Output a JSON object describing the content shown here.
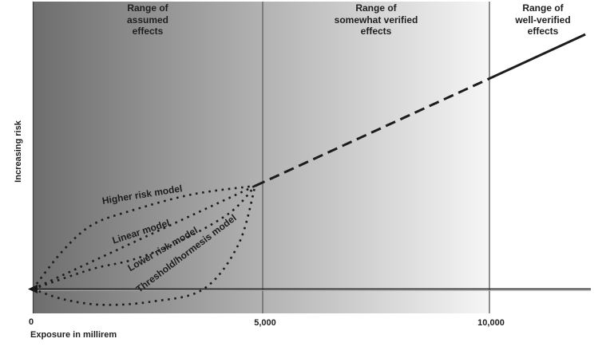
{
  "chart_data": {
    "type": "line",
    "xlabel": "Exposure in millirem",
    "ylabel": "Increasing risk",
    "x_tick_labels": [
      "0",
      "5,000",
      "10,000"
    ],
    "x_tick_values": [
      0,
      5000,
      10000
    ],
    "x_range_millirem": [
      0,
      12200
    ],
    "y_axis": "unitless relative risk (baseline 0 at x-axis line)",
    "regions": [
      {
        "id": "assumed",
        "lines": [
          "Range of",
          "assumed",
          "effects"
        ],
        "x_start": 0,
        "x_end": 5000
      },
      {
        "id": "somewhat-verified",
        "lines": [
          "Range of",
          "somewhat verified",
          "effects"
        ],
        "x_start": 5000,
        "x_end": 10000
      },
      {
        "id": "well-verified",
        "lines": [
          "Range of",
          "well-verified",
          "effects"
        ],
        "x_start": 10000,
        "x_end": 12200
      }
    ],
    "series": [
      {
        "id": "higher-risk-model",
        "name": "Higher risk model",
        "style": "dotted",
        "points": [
          [
            0,
            0
          ],
          [
            650,
            0.36
          ],
          [
            1300,
            0.61
          ],
          [
            2200,
            0.75
          ],
          [
            3500,
            0.9
          ],
          [
            4870,
            0.98
          ]
        ]
      },
      {
        "id": "linear-model",
        "name": "Linear model",
        "style": "dotted",
        "smooth": false,
        "points": [
          [
            0,
            0
          ],
          [
            4870,
            0.98
          ]
        ]
      },
      {
        "id": "lower-risk-model",
        "name": "Lower risk model",
        "style": "dotted",
        "points": [
          [
            0,
            0
          ],
          [
            1300,
            0.19
          ],
          [
            2200,
            0.28
          ],
          [
            3200,
            0.45
          ],
          [
            4300,
            0.72
          ],
          [
            4870,
            0.98
          ]
        ]
      },
      {
        "id": "threshold-hormesis-model",
        "name": "Threshold/hormesis model",
        "style": "dotted",
        "points": [
          [
            0,
            0
          ],
          [
            700,
            -0.1
          ],
          [
            1550,
            -0.15
          ],
          [
            2600,
            -0.12
          ],
          [
            3740,
            0.0
          ],
          [
            4500,
            0.42
          ],
          [
            4870,
            0.98
          ]
        ]
      },
      {
        "id": "extrapolated-line-dashed",
        "style": "dashed",
        "smooth": false,
        "points": [
          [
            4870,
            0.98
          ],
          [
            10000,
            2.0
          ]
        ]
      },
      {
        "id": "verified-line-solid",
        "style": "solid",
        "smooth": false,
        "points": [
          [
            10000,
            2.0
          ],
          [
            12100,
            2.42
          ]
        ]
      }
    ],
    "colors": {
      "gradient_dark": "#6d6d6d",
      "gradient_mid": "#b2b2b2",
      "gradient_light": "#f6f6f6",
      "line": "#1c1c1c",
      "grid_line": "#474747",
      "axis_line": "#262626",
      "text": "#1f1f1f",
      "background_right": "#ffffff"
    }
  }
}
